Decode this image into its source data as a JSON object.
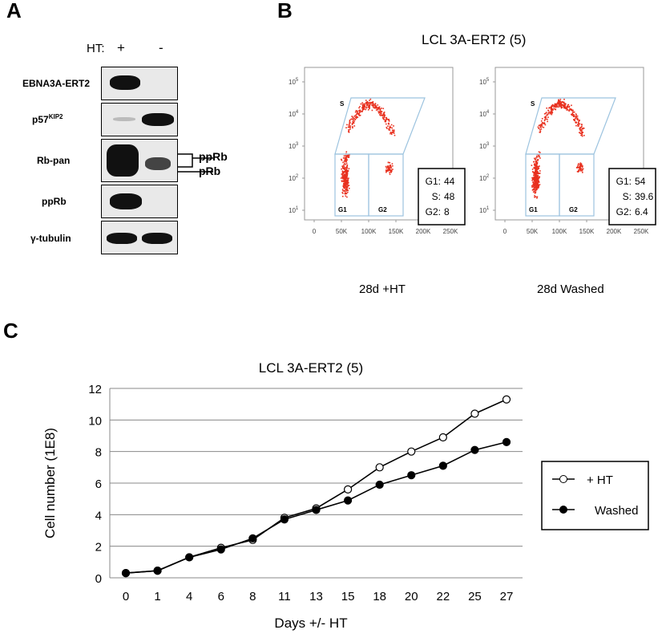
{
  "panels": {
    "a": "A",
    "b": "B",
    "c": "C"
  },
  "blot": {
    "ht_label": "HT:",
    "ht_plus": "+",
    "ht_minus": "-",
    "rows": [
      {
        "label": "EBNA3A-ERT2"
      },
      {
        "label_main": "p57",
        "label_sup": "KIP2"
      },
      {
        "label": "Rb-pan"
      },
      {
        "label": "ppRb"
      },
      {
        "label": "γ-tubulin"
      }
    ],
    "bracket_pprb": "ppRb",
    "bracket_prb": "pRb"
  },
  "flow": {
    "title": "LCL 3A-ERT2 (5)",
    "y_ticks": [
      "10",
      "10",
      "10",
      "10",
      "10"
    ],
    "y_exps": [
      "5",
      "4",
      "3",
      "2",
      "1"
    ],
    "x_ticks": [
      "0",
      "50K",
      "100K",
      "150K",
      "200K",
      "250K"
    ],
    "gates": {
      "s": "S",
      "g1": "G1",
      "g2": "G2"
    },
    "plots": [
      {
        "caption": "28d +HT",
        "stats": [
          {
            "k": "G1:",
            "v": "44"
          },
          {
            "k": "S:",
            "v": "48"
          },
          {
            "k": "G2:",
            "v": "8"
          }
        ]
      },
      {
        "caption": "28d Washed",
        "stats": [
          {
            "k": "G1:",
            "v": "54"
          },
          {
            "k": "S:",
            "v": "39.6"
          },
          {
            "k": "G2:",
            "v": "6.4"
          }
        ]
      }
    ],
    "dot_color": "#e8311f",
    "gate_color": "#9cc3df"
  },
  "chart_data": {
    "type": "line",
    "title": "LCL 3A-ERT2 (5)",
    "xlabel": "Days +/- HT",
    "ylabel": "Cell number (1E8)",
    "categories": [
      "0",
      "1",
      "4",
      "6",
      "8",
      "11",
      "13",
      "15",
      "18",
      "20",
      "22",
      "25",
      "27"
    ],
    "ylim": [
      0,
      12
    ],
    "yticks": [
      "0",
      "2",
      "4",
      "6",
      "8",
      "10",
      "12"
    ],
    "grid": true,
    "legend_position": "right",
    "series": [
      {
        "name": "+ HT",
        "marker": "open-circle",
        "values": [
          0.3,
          0.45,
          1.3,
          1.9,
          2.4,
          3.8,
          4.4,
          5.6,
          7.0,
          8.0,
          8.9,
          10.4,
          11.3
        ]
      },
      {
        "name": "Washed",
        "marker": "filled-circle",
        "values": [
          0.3,
          0.45,
          1.3,
          1.8,
          2.5,
          3.7,
          4.3,
          4.9,
          5.9,
          6.5,
          7.1,
          8.1,
          8.6
        ]
      }
    ]
  }
}
